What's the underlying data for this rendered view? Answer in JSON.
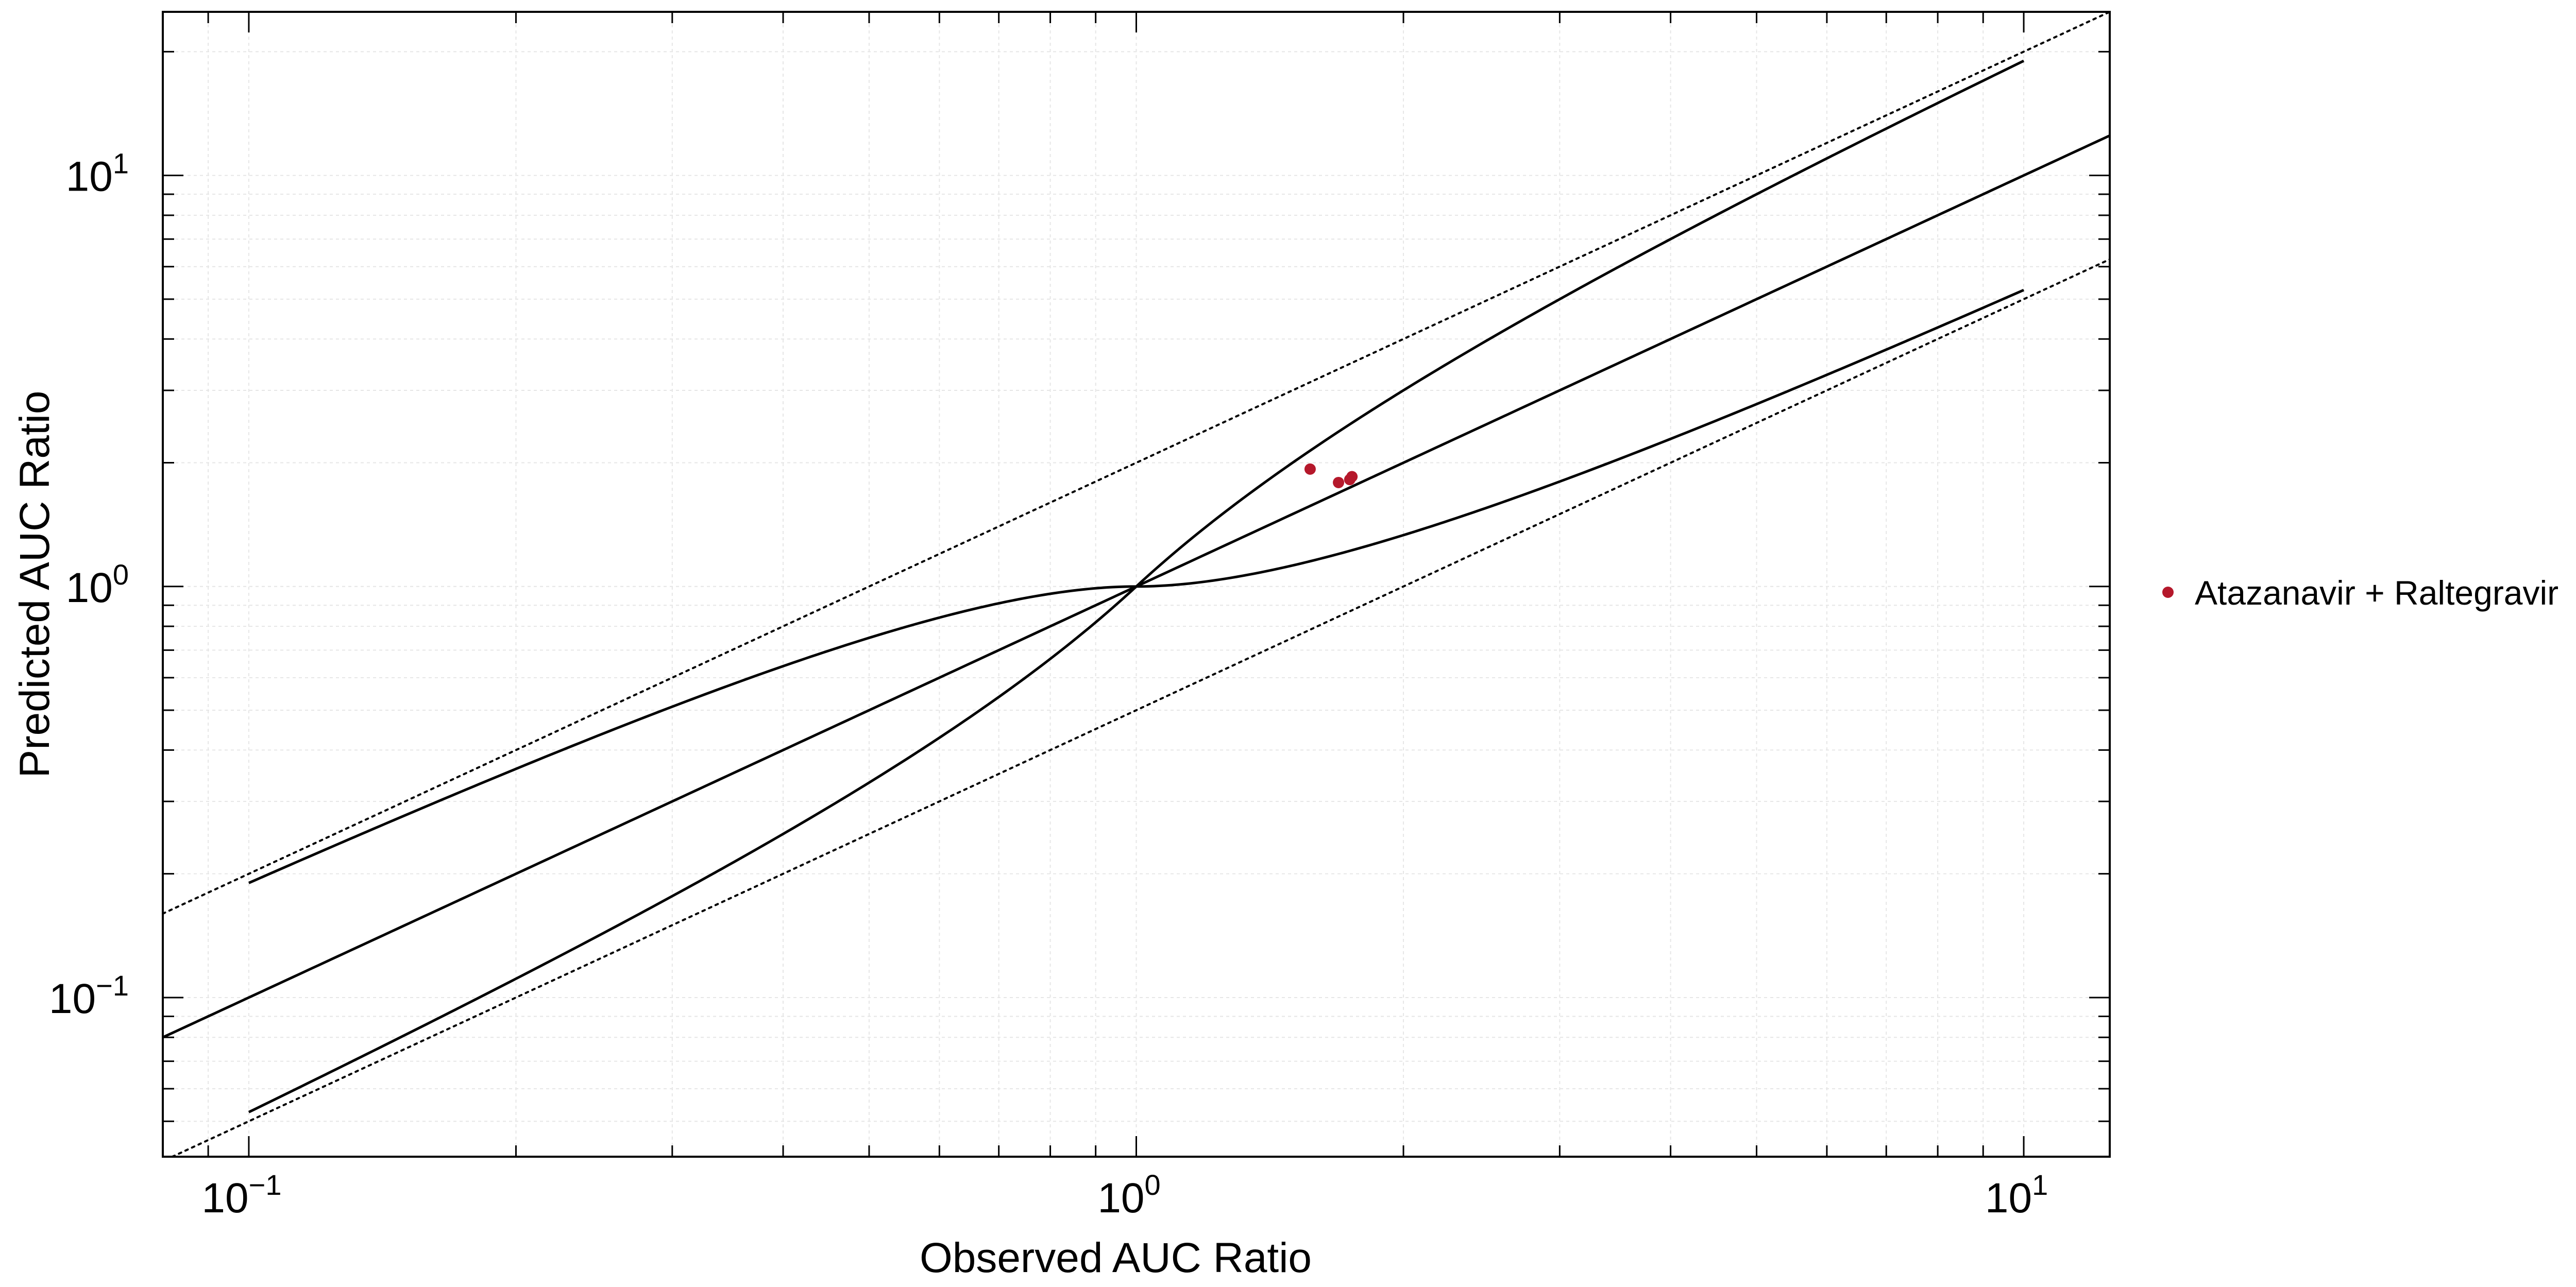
{
  "chart_data": {
    "type": "scatter",
    "title": "",
    "xlabel": "Observed AUC Ratio",
    "ylabel": "Predicted AUC Ratio",
    "x_scale": "log",
    "y_scale": "log",
    "xlim": [
      0.08,
      12.5
    ],
    "ylim": [
      0.041,
      25
    ],
    "grid": true,
    "x_ticks": [
      {
        "value": 0.1,
        "base": "10",
        "exp": "−1"
      },
      {
        "value": 1,
        "base": "10",
        "exp": "0"
      },
      {
        "value": 10,
        "base": "10",
        "exp": "1"
      }
    ],
    "y_ticks": [
      {
        "value": 0.1,
        "base": "10",
        "exp": "−1"
      },
      {
        "value": 1,
        "base": "10",
        "exp": "0"
      },
      {
        "value": 10,
        "base": "10",
        "exp": "1"
      }
    ],
    "legend_position": "right",
    "series": [
      {
        "name": "Atazanavir + Raltegravir",
        "color": "#b5182b",
        "points": [
          {
            "x": 1.57,
            "y": 1.93
          },
          {
            "x": 1.69,
            "y": 1.79
          },
          {
            "x": 1.74,
            "y": 1.82
          },
          {
            "x": 1.75,
            "y": 1.85
          }
        ]
      }
    ],
    "reference_lines": [
      {
        "kind": "identity",
        "style": "solid",
        "description": "y = x"
      },
      {
        "kind": "twofold_upper",
        "style": "dotted",
        "description": "y = 2x"
      },
      {
        "kind": "twofold_lower",
        "style": "dotted",
        "description": "y = x/2"
      },
      {
        "kind": "guest_upper",
        "style": "solid",
        "x_range": [
          0.1,
          10
        ]
      },
      {
        "kind": "guest_lower",
        "style": "solid",
        "x_range": [
          0.1,
          10
        ]
      }
    ]
  }
}
